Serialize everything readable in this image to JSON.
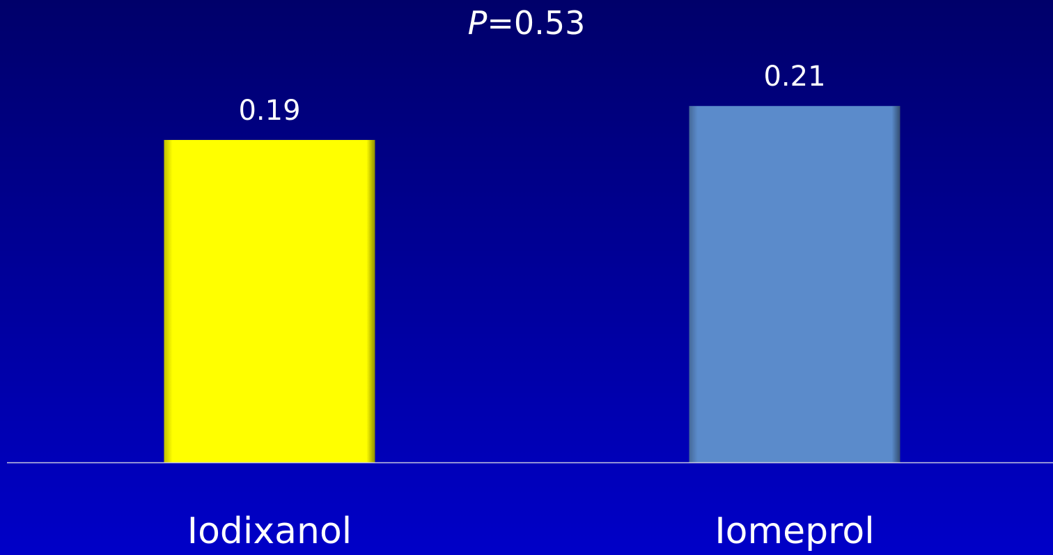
{
  "chart_data": {
    "type": "bar",
    "title": "P=0.53",
    "categories": [
      "Iodixanol",
      "Iomeprol"
    ],
    "values": [
      0.19,
      0.21
    ],
    "colors": [
      "#ffff00",
      "#5b8bcb"
    ]
  }
}
